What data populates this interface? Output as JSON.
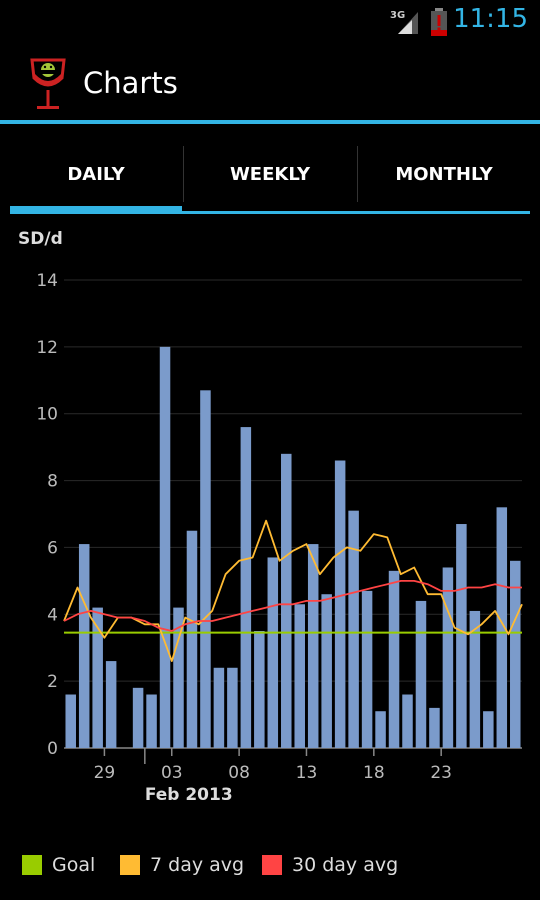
{
  "status_bar": {
    "network": "3G",
    "time": "11:15"
  },
  "action_bar": {
    "title": "Charts"
  },
  "tabs": [
    {
      "label": "DAILY",
      "selected": true
    },
    {
      "label": "WEEKLY",
      "selected": false
    },
    {
      "label": "MONTHLY",
      "selected": false
    }
  ],
  "colors": {
    "accent": "#33b5e5",
    "bar": "#7b9bcb",
    "goal": "#99cc00",
    "avg7": "#ffbb33",
    "avg30": "#ff4444"
  },
  "legend": [
    {
      "label": "Goal",
      "color": "#99cc00"
    },
    {
      "label": "7 day avg",
      "color": "#ffbb33"
    },
    {
      "label": "30 day avg",
      "color": "#ff4444"
    }
  ],
  "chart_data": {
    "type": "bar",
    "ylabel": "SD/d",
    "ylim": [
      0,
      14
    ],
    "yticks": [
      0,
      2,
      4,
      6,
      8,
      10,
      12,
      14
    ],
    "xticks": [
      {
        "index": 3,
        "label": "29"
      },
      {
        "index": 8,
        "label": "03"
      },
      {
        "index": 13,
        "label": "08"
      },
      {
        "index": 18,
        "label": "13"
      },
      {
        "index": 23,
        "label": "18"
      },
      {
        "index": 28,
        "label": "23"
      }
    ],
    "month_marker": {
      "index": 6,
      "label": "Feb 2013"
    },
    "grid": true,
    "series": [
      {
        "name": "SD/d",
        "type": "bar",
        "values": [
          1.6,
          6.1,
          4.2,
          2.6,
          0,
          1.8,
          1.6,
          12.0,
          4.2,
          6.5,
          10.7,
          2.4,
          2.4,
          9.6,
          3.5,
          5.7,
          8.8,
          4.3,
          6.1,
          4.6,
          8.6,
          7.1,
          4.7,
          1.1,
          5.3,
          1.6,
          4.4,
          1.2,
          5.4,
          6.7,
          4.1,
          1.1,
          7.2,
          5.6
        ]
      },
      {
        "name": "Goal",
        "type": "line",
        "values": [
          3.45
        ]
      },
      {
        "name": "7 day avg",
        "type": "line",
        "values": [
          3.8,
          4.8,
          3.9,
          3.3,
          3.9,
          3.9,
          3.7,
          3.7,
          2.6,
          3.9,
          3.7,
          4.1,
          5.2,
          5.6,
          5.7,
          6.8,
          5.6,
          5.9,
          6.1,
          5.2,
          5.7,
          6.0,
          5.9,
          6.4,
          6.3,
          5.2,
          5.4,
          4.6,
          4.6,
          3.6,
          3.4,
          3.7,
          4.1,
          3.4,
          4.3
        ]
      },
      {
        "name": "30 day avg",
        "type": "line",
        "values": [
          3.8,
          4.0,
          4.1,
          4.0,
          3.9,
          3.9,
          3.8,
          3.6,
          3.5,
          3.7,
          3.8,
          3.8,
          3.9,
          4.0,
          4.1,
          4.2,
          4.3,
          4.3,
          4.4,
          4.4,
          4.5,
          4.6,
          4.7,
          4.8,
          4.9,
          5.0,
          5.0,
          4.9,
          4.7,
          4.7,
          4.8,
          4.8,
          4.9,
          4.8,
          4.8
        ]
      }
    ]
  }
}
